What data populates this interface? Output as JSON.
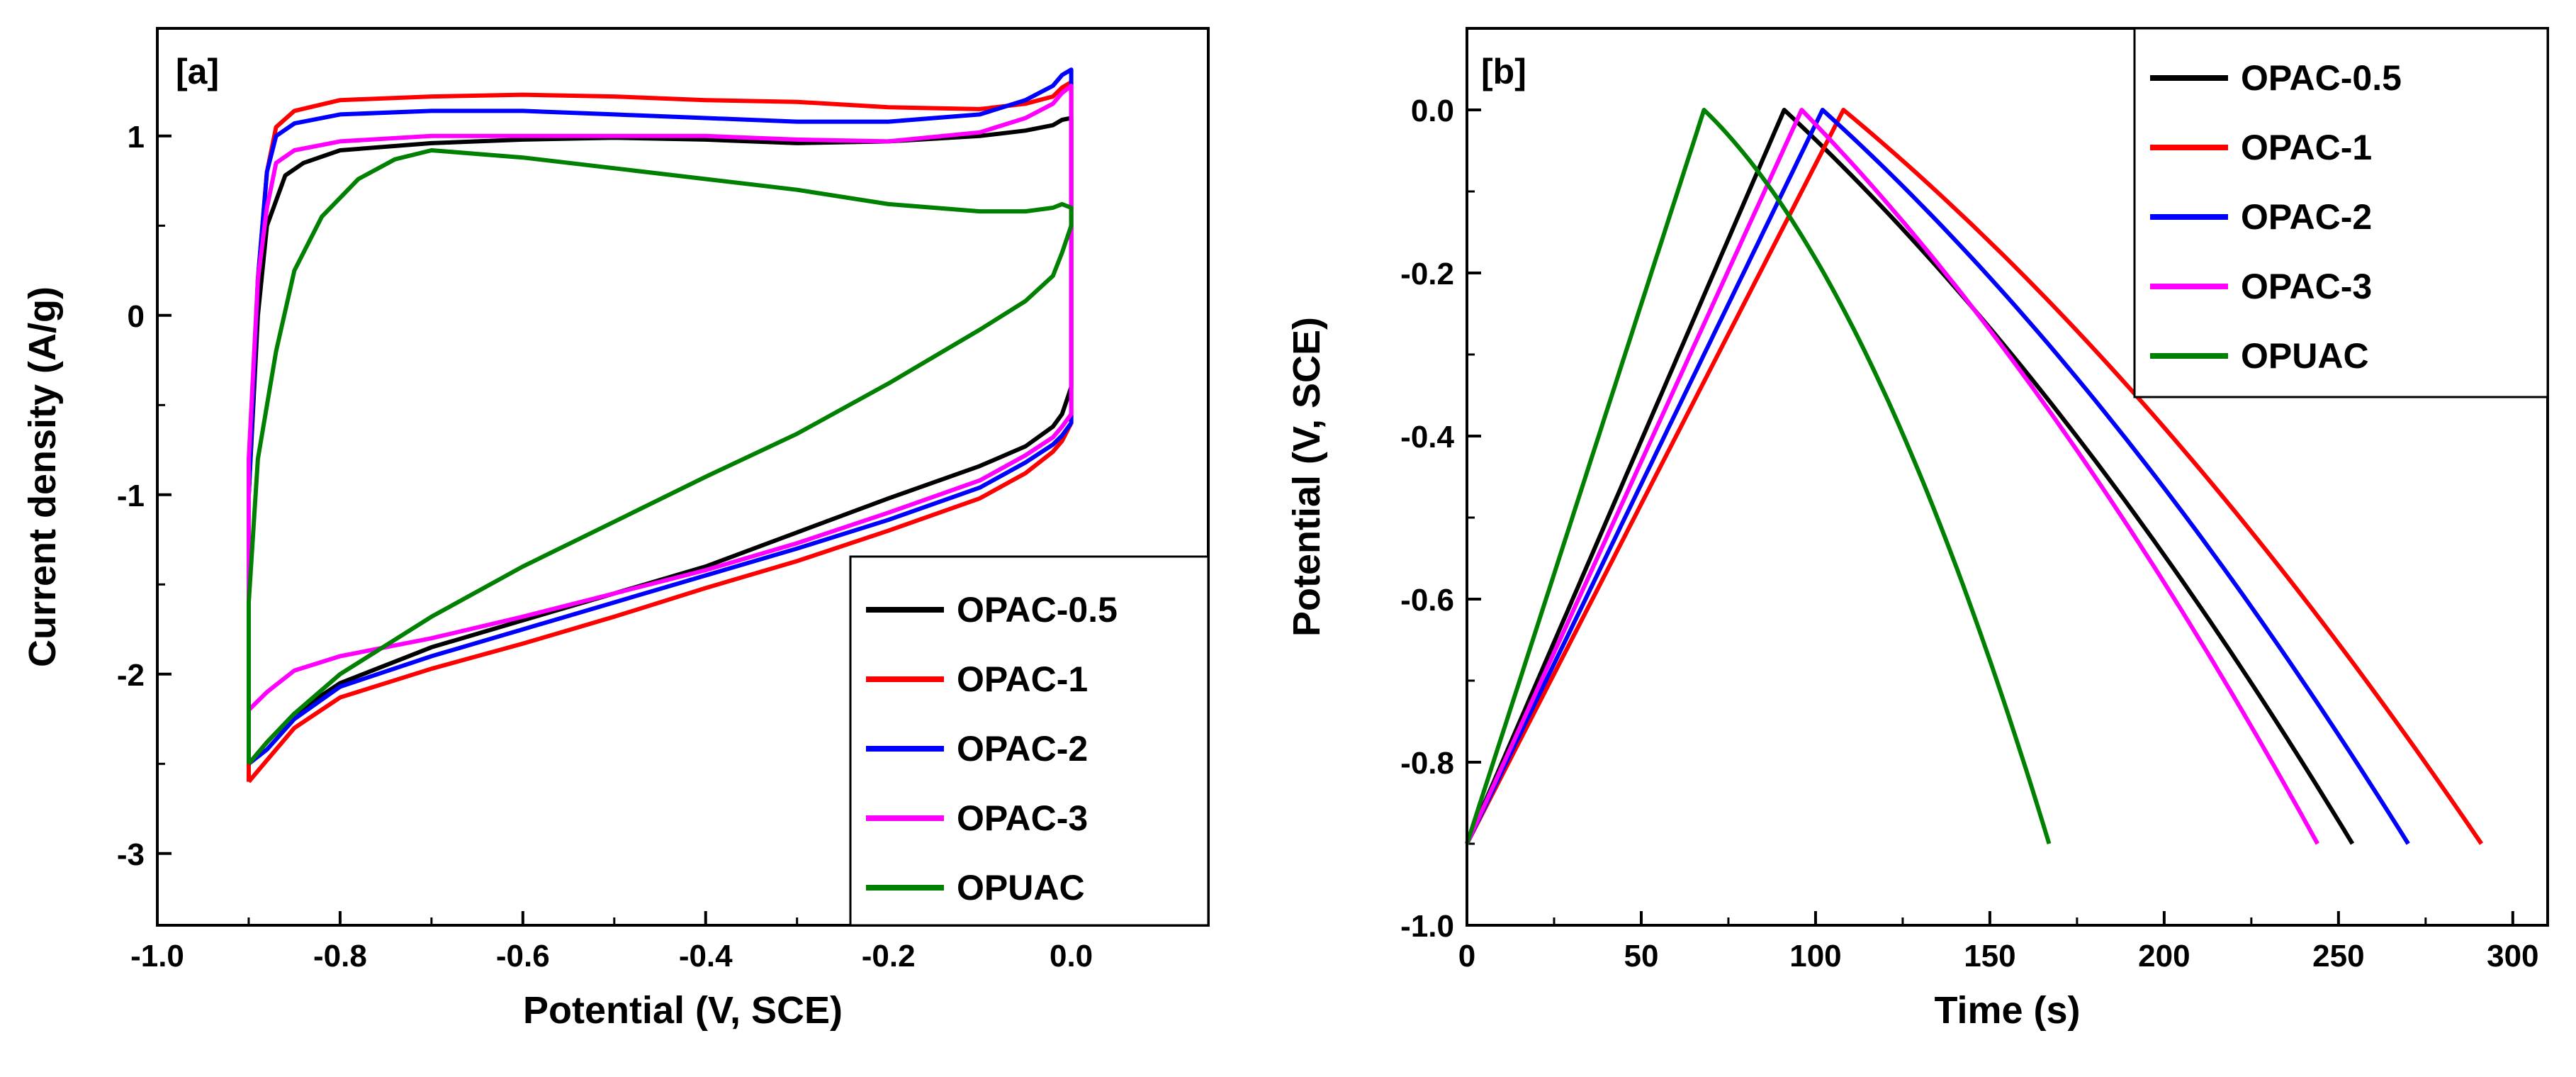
{
  "chart_data": [
    {
      "type": "line",
      "panel_tag": "[a]",
      "xlabel": "Potential (V, SCE)",
      "ylabel": "Current density (A/g)",
      "xlim": [
        -1.0,
        0.15
      ],
      "ylim": [
        -3.4,
        1.6
      ],
      "xticks": [
        -1.0,
        -0.8,
        -0.6,
        -0.4,
        -0.2,
        0.0
      ],
      "xtick_labels": [
        "-1.0",
        "-0.8",
        "-0.6",
        "-0.4",
        "-0.2",
        "0.0"
      ],
      "yticks": [
        -3,
        -2,
        -1,
        0,
        1
      ],
      "ytick_labels": [
        "-3",
        "-2",
        "-1",
        "0",
        "1"
      ],
      "legend_position": "bottom-right",
      "series": [
        {
          "name": "OPAC-0.5",
          "color": "#000000",
          "x": [
            -0.9,
            -0.9,
            -0.89,
            -0.88,
            -0.86,
            -0.84,
            -0.8,
            -0.7,
            -0.6,
            -0.5,
            -0.4,
            -0.3,
            -0.2,
            -0.1,
            -0.05,
            -0.02,
            -0.01,
            0.0,
            0.0,
            -0.01,
            -0.02,
            -0.05,
            -0.1,
            -0.2,
            -0.3,
            -0.4,
            -0.5,
            -0.6,
            -0.7,
            -0.8,
            -0.85,
            -0.88,
            -0.9
          ],
          "y": [
            -2.5,
            -1.0,
            0.0,
            0.5,
            0.78,
            0.85,
            0.92,
            0.96,
            0.98,
            0.99,
            0.98,
            0.96,
            0.97,
            1.0,
            1.03,
            1.06,
            1.09,
            1.1,
            -0.4,
            -0.55,
            -0.62,
            -0.73,
            -0.84,
            -1.02,
            -1.21,
            -1.4,
            -1.55,
            -1.7,
            -1.85,
            -2.05,
            -2.22,
            -2.38,
            -2.5
          ]
        },
        {
          "name": "OPAC-1",
          "color": "#ff0000",
          "x": [
            -0.9,
            -0.9,
            -0.89,
            -0.88,
            -0.87,
            -0.85,
            -0.8,
            -0.7,
            -0.6,
            -0.5,
            -0.4,
            -0.3,
            -0.2,
            -0.1,
            -0.05,
            -0.02,
            -0.01,
            0.0,
            0.0,
            -0.01,
            -0.02,
            -0.05,
            -0.1,
            -0.2,
            -0.3,
            -0.4,
            -0.5,
            -0.6,
            -0.7,
            -0.8,
            -0.85,
            -0.88,
            -0.9
          ],
          "y": [
            -2.6,
            -1.0,
            0.2,
            0.8,
            1.05,
            1.14,
            1.2,
            1.22,
            1.23,
            1.22,
            1.2,
            1.19,
            1.16,
            1.15,
            1.18,
            1.22,
            1.27,
            1.3,
            -0.6,
            -0.7,
            -0.76,
            -0.88,
            -1.02,
            -1.2,
            -1.37,
            -1.52,
            -1.68,
            -1.83,
            -1.97,
            -2.13,
            -2.3,
            -2.48,
            -2.6
          ]
        },
        {
          "name": "OPAC-2",
          "color": "#0000ff",
          "x": [
            -0.9,
            -0.9,
            -0.89,
            -0.88,
            -0.87,
            -0.85,
            -0.8,
            -0.7,
            -0.6,
            -0.5,
            -0.4,
            -0.3,
            -0.2,
            -0.1,
            -0.05,
            -0.02,
            -0.01,
            0.0,
            0.0,
            -0.01,
            -0.02,
            -0.05,
            -0.1,
            -0.2,
            -0.3,
            -0.4,
            -0.5,
            -0.6,
            -0.7,
            -0.8,
            -0.85,
            -0.88,
            -0.9
          ],
          "y": [
            -2.5,
            -1.0,
            0.2,
            0.8,
            1.0,
            1.07,
            1.12,
            1.14,
            1.14,
            1.12,
            1.1,
            1.08,
            1.08,
            1.12,
            1.2,
            1.28,
            1.34,
            1.37,
            -0.6,
            -0.67,
            -0.72,
            -0.82,
            -0.96,
            -1.14,
            -1.3,
            -1.45,
            -1.6,
            -1.75,
            -1.9,
            -2.07,
            -2.25,
            -2.42,
            -2.5
          ]
        },
        {
          "name": "OPAC-3",
          "color": "#ff00ff",
          "x": [
            -0.9,
            -0.9,
            -0.89,
            -0.88,
            -0.87,
            -0.85,
            -0.8,
            -0.7,
            -0.6,
            -0.5,
            -0.4,
            -0.3,
            -0.2,
            -0.1,
            -0.05,
            -0.02,
            -0.01,
            0.0,
            0.0,
            -0.01,
            -0.02,
            -0.05,
            -0.1,
            -0.2,
            -0.3,
            -0.4,
            -0.5,
            -0.6,
            -0.7,
            -0.8,
            -0.85,
            -0.88,
            -0.9
          ],
          "y": [
            -2.2,
            -0.8,
            0.2,
            0.6,
            0.85,
            0.92,
            0.97,
            1.0,
            1.0,
            1.0,
            1.0,
            0.98,
            0.97,
            1.02,
            1.1,
            1.18,
            1.24,
            1.28,
            -0.55,
            -0.62,
            -0.68,
            -0.78,
            -0.92,
            -1.1,
            -1.27,
            -1.42,
            -1.55,
            -1.68,
            -1.8,
            -1.9,
            -1.98,
            -2.1,
            -2.2
          ]
        },
        {
          "name": "OPUAC",
          "color": "#008000",
          "x": [
            -0.9,
            -0.9,
            -0.89,
            -0.87,
            -0.85,
            -0.82,
            -0.78,
            -0.74,
            -0.7,
            -0.6,
            -0.5,
            -0.4,
            -0.3,
            -0.2,
            -0.1,
            -0.05,
            -0.02,
            -0.01,
            0.0,
            0.0,
            -0.01,
            -0.02,
            -0.05,
            -0.1,
            -0.2,
            -0.3,
            -0.4,
            -0.5,
            -0.6,
            -0.7,
            -0.8,
            -0.85,
            -0.88,
            -0.9
          ],
          "y": [
            -2.5,
            -1.6,
            -0.8,
            -0.2,
            0.25,
            0.55,
            0.76,
            0.87,
            0.92,
            0.88,
            0.82,
            0.76,
            0.7,
            0.62,
            0.58,
            0.58,
            0.6,
            0.62,
            0.6,
            0.5,
            0.35,
            0.22,
            0.08,
            -0.08,
            -0.38,
            -0.66,
            -0.9,
            -1.15,
            -1.4,
            -1.68,
            -2.0,
            -2.22,
            -2.38,
            -2.5
          ]
        }
      ]
    },
    {
      "type": "line",
      "panel_tag": "[b]",
      "xlabel": "Time (s)",
      "ylabel": "Potential (V, SCE)",
      "xlim": [
        0,
        310
      ],
      "ylim": [
        -1.0,
        0.1
      ],
      "xticks": [
        0,
        50,
        100,
        150,
        200,
        250,
        300
      ],
      "xtick_labels": [
        "0",
        "50",
        "100",
        "150",
        "200",
        "250",
        "300"
      ],
      "yticks": [
        -1.0,
        -0.8,
        -0.6,
        -0.4,
        -0.2,
        0.0
      ],
      "ytick_labels": [
        "-1.0",
        "-0.8",
        "-0.6",
        "-0.4",
        "-0.2",
        "0.0"
      ],
      "legend_position": "top-right",
      "series": [
        {
          "name": "OPAC-0.5",
          "color": "#000000",
          "charge_end": 91,
          "discharge_end": 254,
          "v_min": -0.9,
          "v_max": 0.0,
          "curvature": 0.72
        },
        {
          "name": "OPAC-1",
          "color": "#ff0000",
          "charge_end": 108,
          "discharge_end": 291,
          "v_min": -0.9,
          "v_max": 0.0,
          "curvature": 0.72
        },
        {
          "name": "OPAC-2",
          "color": "#0000ff",
          "charge_end": 102,
          "discharge_end": 270,
          "v_min": -0.9,
          "v_max": 0.0,
          "curvature": 0.72
        },
        {
          "name": "OPAC-3",
          "color": "#ff00ff",
          "charge_end": 96,
          "discharge_end": 244,
          "v_min": -0.9,
          "v_max": 0.0,
          "curvature": 0.72
        },
        {
          "name": "OPUAC",
          "color": "#008000",
          "charge_end": 68,
          "discharge_end": 167,
          "v_min": -0.9,
          "v_max": 0.0,
          "curvature": 0.45
        }
      ]
    }
  ]
}
